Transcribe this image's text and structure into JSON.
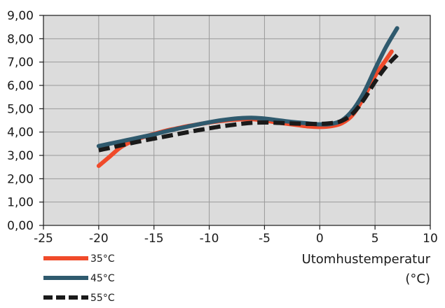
{
  "chart_data": {
    "type": "line",
    "title": "",
    "xlabel": "Utomhustemperatur",
    "xunit": "(°C)",
    "ylabel": "",
    "xlim": [
      -25,
      10
    ],
    "ylim": [
      0,
      9
    ],
    "xticks": [
      -25,
      -20,
      -15,
      -10,
      -5,
      0,
      5,
      10
    ],
    "xtick_labels": [
      "-25",
      "-20",
      "-15",
      "-10",
      "-5",
      "0",
      "5",
      "10"
    ],
    "yticks": [
      0,
      1,
      2,
      3,
      4,
      5,
      6,
      7,
      8,
      9
    ],
    "ytick_labels": [
      "0,00",
      "1,00",
      "2,00",
      "3,00",
      "4,00",
      "5,00",
      "6,00",
      "7,00",
      "8,00",
      "9,00"
    ],
    "grid": true,
    "plot_background": "#dcdcdc",
    "legend_position": "bottom-left",
    "series": [
      {
        "name": "35°C",
        "color": "#f04a2a",
        "dash": "solid",
        "points": [
          [
            -20,
            2.55
          ],
          [
            -19,
            2.95
          ],
          [
            -18,
            3.35
          ],
          [
            -17,
            3.6
          ],
          [
            -16,
            3.78
          ],
          [
            -15,
            3.92
          ],
          [
            -14,
            4.05
          ],
          [
            -13,
            4.15
          ],
          [
            -12,
            4.25
          ],
          [
            -11,
            4.33
          ],
          [
            -10,
            4.41
          ],
          [
            -9,
            4.47
          ],
          [
            -8,
            4.52
          ],
          [
            -7,
            4.55
          ],
          [
            -6,
            4.55
          ],
          [
            -5,
            4.5
          ],
          [
            -4,
            4.42
          ],
          [
            -3,
            4.36
          ],
          [
            -2,
            4.3
          ],
          [
            -1,
            4.24
          ],
          [
            0,
            4.22
          ],
          [
            1,
            4.25
          ],
          [
            2,
            4.38
          ],
          [
            3,
            4.75
          ],
          [
            4,
            5.5
          ],
          [
            5,
            6.4
          ],
          [
            6,
            7.1
          ],
          [
            6.5,
            7.45
          ]
        ]
      },
      {
        "name": "45°C",
        "color": "#2f5a6e",
        "dash": "solid",
        "points": [
          [
            -20,
            3.4
          ],
          [
            -19,
            3.5
          ],
          [
            -18,
            3.6
          ],
          [
            -17,
            3.7
          ],
          [
            -16,
            3.8
          ],
          [
            -15,
            3.9
          ],
          [
            -14,
            4.02
          ],
          [
            -13,
            4.13
          ],
          [
            -12,
            4.23
          ],
          [
            -11,
            4.33
          ],
          [
            -10,
            4.42
          ],
          [
            -9,
            4.5
          ],
          [
            -8,
            4.56
          ],
          [
            -7,
            4.6
          ],
          [
            -6,
            4.61
          ],
          [
            -5,
            4.58
          ],
          [
            -4,
            4.52
          ],
          [
            -3,
            4.46
          ],
          [
            -2,
            4.41
          ],
          [
            -1,
            4.37
          ],
          [
            0,
            4.33
          ],
          [
            1,
            4.35
          ],
          [
            2,
            4.5
          ],
          [
            3,
            4.95
          ],
          [
            4,
            5.7
          ],
          [
            5,
            6.7
          ],
          [
            6,
            7.65
          ],
          [
            7,
            8.45
          ]
        ]
      },
      {
        "name": "55°C",
        "color": "#1a1a1a",
        "dash": "dashed",
        "points": [
          [
            -20,
            3.22
          ],
          [
            -19,
            3.32
          ],
          [
            -18,
            3.43
          ],
          [
            -17,
            3.53
          ],
          [
            -16,
            3.63
          ],
          [
            -15,
            3.72
          ],
          [
            -14,
            3.81
          ],
          [
            -13,
            3.9
          ],
          [
            -12,
            3.99
          ],
          [
            -11,
            4.08
          ],
          [
            -10,
            4.16
          ],
          [
            -9,
            4.24
          ],
          [
            -8,
            4.3
          ],
          [
            -7,
            4.36
          ],
          [
            -6,
            4.4
          ],
          [
            -5,
            4.41
          ],
          [
            -4,
            4.4
          ],
          [
            -3,
            4.38
          ],
          [
            -2,
            4.36
          ],
          [
            -1,
            4.35
          ],
          [
            0,
            4.35
          ],
          [
            1,
            4.38
          ],
          [
            2,
            4.48
          ],
          [
            3,
            4.8
          ],
          [
            4,
            5.4
          ],
          [
            5,
            6.15
          ],
          [
            6,
            6.8
          ],
          [
            7,
            7.3
          ]
        ]
      }
    ]
  }
}
